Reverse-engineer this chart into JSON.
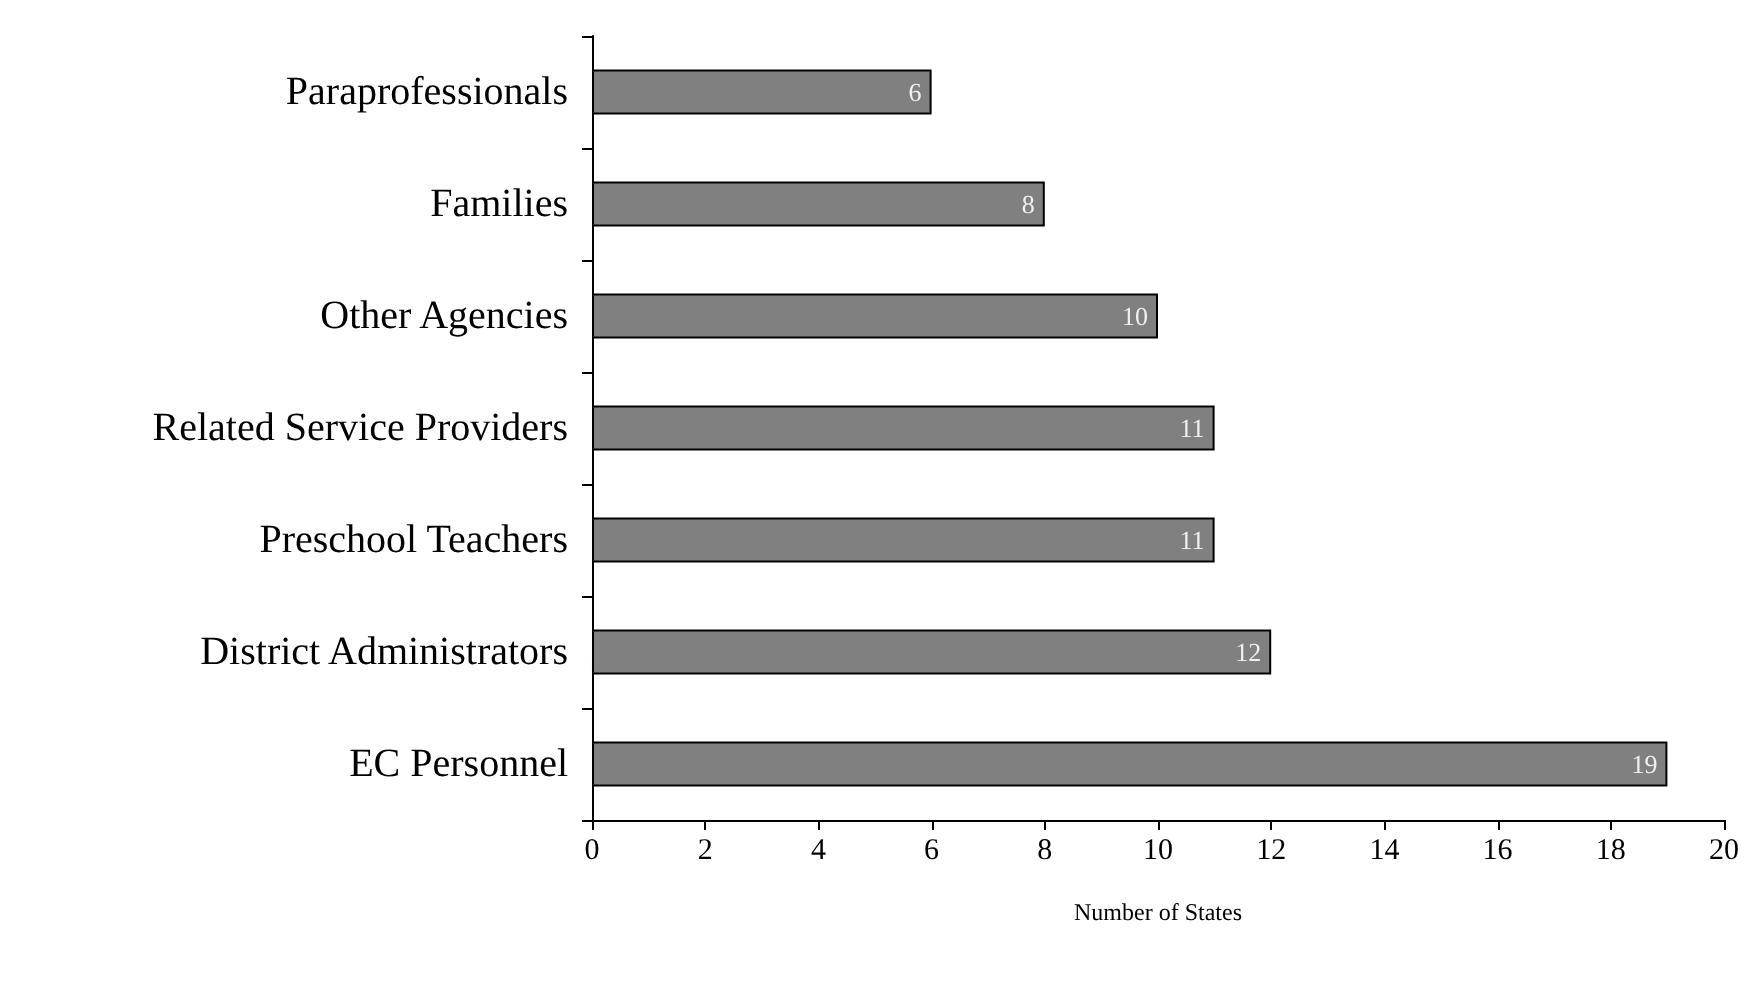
{
  "chart_data": {
    "type": "bar",
    "orientation": "horizontal",
    "xlabel": "Number of States",
    "categories": [
      "Paraprofessionals",
      "Families",
      "Other Agencies",
      "Related Service Providers",
      "Preschool Teachers",
      "District Administrators",
      "EC Personnel"
    ],
    "values": [
      6,
      8,
      10,
      11,
      11,
      12,
      19
    ],
    "color": "#808080",
    "xlim": [
      0,
      20
    ],
    "xticks": [
      0,
      2,
      4,
      6,
      8,
      10,
      12,
      14,
      16,
      18,
      20
    ],
    "data_labels": true,
    "grid": false
  }
}
